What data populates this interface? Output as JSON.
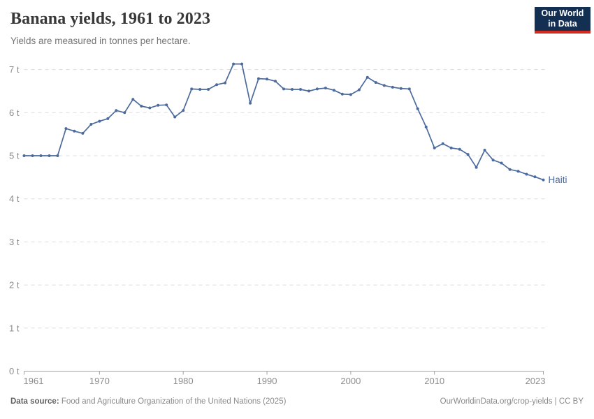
{
  "header": {
    "title": "Banana yields, 1961 to 2023",
    "subtitle": "Yields are measured in tonnes per hectare.",
    "logo": {
      "line1": "Our World",
      "line2": "in Data"
    }
  },
  "footer": {
    "source_label": "Data source:",
    "source_text": " Food and Agriculture Organization of the United Nations (2025)",
    "link_text": "OurWorldinData.org/crop-yields | CC BY"
  },
  "colors": {
    "series_line": "#4C6A9C",
    "gridline": "#dcdcdc",
    "axis_line": "#a3a3a3",
    "tick_label": "#8c8c8c",
    "logo_bg": "#132f52",
    "logo_accent": "#d42b21"
  },
  "chart_data": {
    "type": "line",
    "title": "Banana yields, 1961 to 2023",
    "subtitle": "Yields are measured in tonnes per hectare.",
    "unit": "tonnes per hectare",
    "xlabel": "",
    "ylabel": "",
    "grid": true,
    "legend_position": "end-of-line",
    "xlim": [
      1961,
      2023
    ],
    "ylim": [
      0,
      7.3
    ],
    "x_ticks": [
      1961,
      1970,
      1980,
      1990,
      2000,
      2010,
      2023
    ],
    "y_ticks": [
      0,
      1,
      2,
      3,
      4,
      5,
      6,
      7
    ],
    "y_tick_labels": [
      "0 t",
      "1 t",
      "2 t",
      "3 t",
      "4 t",
      "5 t",
      "6 t",
      "7 t"
    ],
    "series": [
      {
        "name": "Haiti",
        "color": "#4C6A9C",
        "x": [
          1961,
          1962,
          1963,
          1964,
          1965,
          1966,
          1967,
          1968,
          1969,
          1970,
          1971,
          1972,
          1973,
          1974,
          1975,
          1976,
          1977,
          1978,
          1979,
          1980,
          1981,
          1982,
          1983,
          1984,
          1985,
          1986,
          1987,
          1988,
          1989,
          1990,
          1991,
          1992,
          1993,
          1994,
          1995,
          1996,
          1997,
          1998,
          1999,
          2000,
          2001,
          2002,
          2003,
          2004,
          2005,
          2006,
          2007,
          2008,
          2009,
          2010,
          2011,
          2012,
          2013,
          2014,
          2015,
          2016,
          2017,
          2018,
          2019,
          2020,
          2021,
          2022,
          2023
        ],
        "values": [
          5.0,
          5.0,
          5.0,
          5.0,
          5.0,
          5.63,
          5.57,
          5.52,
          5.73,
          5.8,
          5.86,
          6.05,
          6.0,
          6.31,
          6.15,
          6.11,
          6.17,
          6.18,
          5.9,
          6.05,
          6.55,
          6.54,
          6.54,
          6.65,
          6.69,
          7.13,
          7.13,
          6.22,
          6.79,
          6.78,
          6.73,
          6.55,
          6.54,
          6.54,
          6.5,
          6.55,
          6.57,
          6.52,
          6.43,
          6.42,
          6.53,
          6.82,
          6.7,
          6.63,
          6.59,
          6.56,
          6.55,
          6.09,
          5.67,
          5.18,
          5.28,
          5.18,
          5.15,
          5.03,
          4.73,
          5.13,
          4.9,
          4.83,
          4.68,
          4.64,
          4.57,
          4.51,
          4.44
        ]
      }
    ]
  }
}
